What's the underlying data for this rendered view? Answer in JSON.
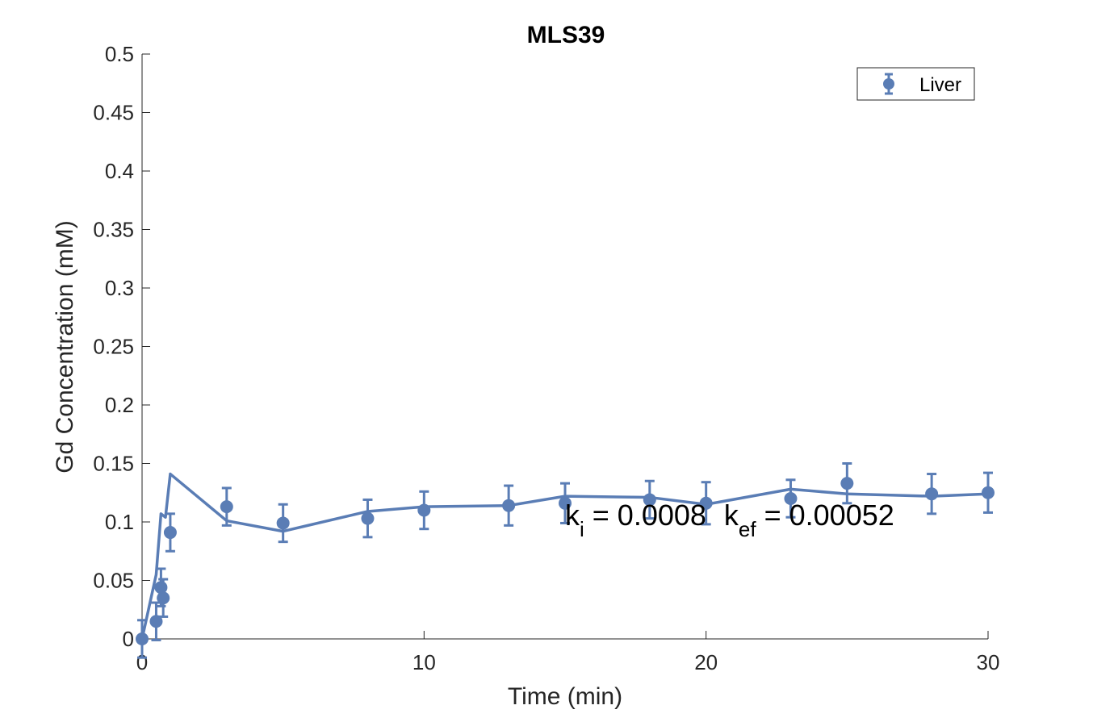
{
  "chart_data": {
    "type": "scatter",
    "title": "MLS39",
    "xlabel": "Time (min)",
    "ylabel": "Gd Concentration (mM)",
    "xlim": [
      0,
      30
    ],
    "ylim": [
      0,
      0.5
    ],
    "x_ticks": [
      "0",
      "10",
      "20",
      "30"
    ],
    "y_ticks": [
      "0",
      "0.05",
      "0.1",
      "0.15",
      "0.2",
      "0.25",
      "0.3",
      "0.35",
      "0.4",
      "0.45",
      "0.5"
    ],
    "grid": false,
    "legend_position": "top-right",
    "color": "#5a7db5",
    "series": [
      {
        "name": "Liver",
        "kind": "errorbar-markers",
        "points": [
          {
            "x": 0,
            "y": 0.0,
            "err": 0.016
          },
          {
            "x": 0.5,
            "y": 0.015,
            "err": 0.016
          },
          {
            "x": 0.67,
            "y": 0.044,
            "err": 0.016
          },
          {
            "x": 0.75,
            "y": 0.035,
            "err": 0.016
          },
          {
            "x": 1,
            "y": 0.091,
            "err": 0.016
          },
          {
            "x": 3,
            "y": 0.113,
            "err": 0.016
          },
          {
            "x": 5,
            "y": 0.099,
            "err": 0.016
          },
          {
            "x": 8,
            "y": 0.103,
            "err": 0.016
          },
          {
            "x": 10,
            "y": 0.11,
            "err": 0.016
          },
          {
            "x": 13,
            "y": 0.114,
            "err": 0.017
          },
          {
            "x": 15,
            "y": 0.116,
            "err": 0.017
          },
          {
            "x": 18,
            "y": 0.119,
            "err": 0.016
          },
          {
            "x": 20,
            "y": 0.116,
            "err": 0.018
          },
          {
            "x": 23,
            "y": 0.12,
            "err": 0.016
          },
          {
            "x": 25,
            "y": 0.133,
            "err": 0.017
          },
          {
            "x": 28,
            "y": 0.124,
            "err": 0.017
          },
          {
            "x": 30,
            "y": 0.125,
            "err": 0.017
          }
        ]
      },
      {
        "kind": "fit-line",
        "points": [
          {
            "x": 0,
            "y": 0.0
          },
          {
            "x": 0.5,
            "y": 0.055
          },
          {
            "x": 0.67,
            "y": 0.107
          },
          {
            "x": 0.83,
            "y": 0.104
          },
          {
            "x": 1,
            "y": 0.141
          },
          {
            "x": 3,
            "y": 0.101
          },
          {
            "x": 5,
            "y": 0.092
          },
          {
            "x": 8,
            "y": 0.109
          },
          {
            "x": 10,
            "y": 0.113
          },
          {
            "x": 13,
            "y": 0.114
          },
          {
            "x": 15,
            "y": 0.122
          },
          {
            "x": 18,
            "y": 0.121
          },
          {
            "x": 20,
            "y": 0.115
          },
          {
            "x": 23,
            "y": 0.128
          },
          {
            "x": 25,
            "y": 0.124
          },
          {
            "x": 28,
            "y": 0.122
          },
          {
            "x": 30,
            "y": 0.124
          }
        ]
      }
    ],
    "annotation": {
      "k1_base": "k",
      "k1_sub": "i",
      "k1_value": " = 0.0008",
      "k2_base": "k",
      "k2_sub": "ef",
      "k2_value": " = 0.00052",
      "x": 15,
      "y": 0.1
    }
  }
}
